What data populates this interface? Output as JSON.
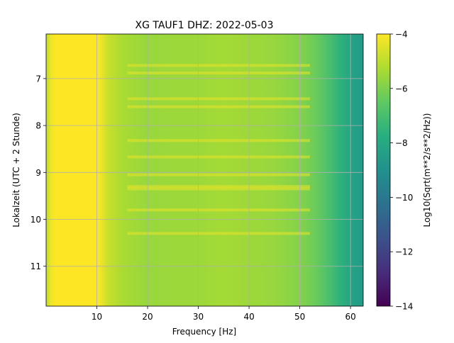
{
  "chart_data": {
    "type": "heatmap",
    "title": "XG TAUF1  DHZ: 2022-05-03",
    "xlabel": "Frequency [Hz]",
    "ylabel": "Lokalzeit (UTC + 2 Stunde)",
    "xlim": [
      0,
      62.5
    ],
    "ylim": [
      6.05,
      11.85
    ],
    "y_inverted": true,
    "x_ticks": [
      10,
      20,
      30,
      40,
      50,
      60
    ],
    "x_tick_labels": [
      "10",
      "20",
      "30",
      "40",
      "50",
      "60"
    ],
    "y_ticks": [
      7,
      8,
      9,
      10,
      11
    ],
    "y_tick_labels": [
      "7",
      "8",
      "9",
      "10",
      "11"
    ],
    "grid": true,
    "colormap": "viridis",
    "colorbar": {
      "label": "Log10(Sqrt(m**2/s**2/Hz))",
      "range": [
        -14,
        -4
      ],
      "ticks": [
        -4,
        -6,
        -8,
        -10,
        -12,
        -14
      ],
      "tick_labels": [
        "−4",
        "−6",
        "−8",
        "−10",
        "−12",
        "−14"
      ]
    },
    "value_profile": {
      "frequency_hz": [
        0,
        1,
        2,
        10,
        11,
        12,
        15,
        20,
        25,
        30,
        35,
        40,
        45,
        50,
        53,
        56,
        58,
        60,
        62.5
      ],
      "level": [
        -5.0,
        -4.2,
        -4.0,
        -4.0,
        -4.3,
        -4.8,
        -5.3,
        -5.6,
        -5.5,
        -5.5,
        -5.4,
        -5.5,
        -5.6,
        -5.9,
        -6.3,
        -7.0,
        -7.6,
        -8.2,
        -8.6
      ]
    },
    "bright_bands_time": [
      6.72,
      6.88,
      7.43,
      7.6,
      8.32,
      8.67,
      9.05,
      9.3,
      9.35,
      9.8,
      10.3
    ]
  }
}
